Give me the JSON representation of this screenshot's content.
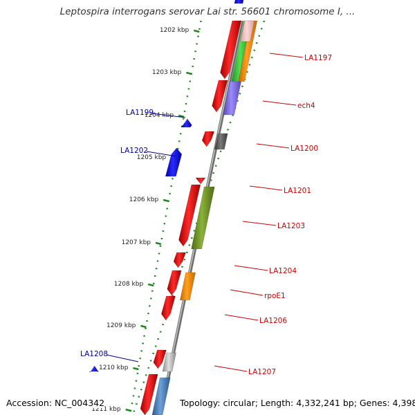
{
  "title": "Leptospira interrogans serovar Lai str. 56601 chromosome I, ...",
  "footer": {
    "accession": "Accession: NC_004342",
    "topology": "Topology: circular; Length: 4,332,241 bp; Genes: 4,398"
  },
  "colors": {
    "backbone": "#8c8c8c",
    "tick": "#1a8a1a",
    "forward_gene": "#e00000",
    "reverse_gene": "#0000ee",
    "forward_label": "#cc0000",
    "reverse_label": "#000099"
  },
  "scale": {
    "unit": "kbp",
    "ticks": [
      {
        "value": 1202,
        "label": "1202 kbp"
      },
      {
        "value": 1203,
        "label": "1203 kbp"
      },
      {
        "value": 1204,
        "label": "1204 kbp"
      },
      {
        "value": 1205,
        "label": "1205 kbp"
      },
      {
        "value": 1206,
        "label": "1206 kbp"
      },
      {
        "value": 1207,
        "label": "1207 kbp"
      },
      {
        "value": 1208,
        "label": "1208 kbp"
      },
      {
        "value": 1209,
        "label": "1209 kbp"
      },
      {
        "value": 1210,
        "label": "1210 kbp"
      },
      {
        "value": 1211,
        "label": "1211 kbp"
      }
    ]
  },
  "forward_labels": [
    {
      "name": "LA1197"
    },
    {
      "name": "ech4"
    },
    {
      "name": "LA1200"
    },
    {
      "name": "LA1201"
    },
    {
      "name": "LA1203"
    },
    {
      "name": "LA1204"
    },
    {
      "name": "rpoE1"
    },
    {
      "name": "LA1206"
    },
    {
      "name": "LA1207"
    }
  ],
  "reverse_labels": [
    {
      "name": "LA1199"
    },
    {
      "name": "LA1202"
    },
    {
      "name": "LA1208"
    }
  ]
}
